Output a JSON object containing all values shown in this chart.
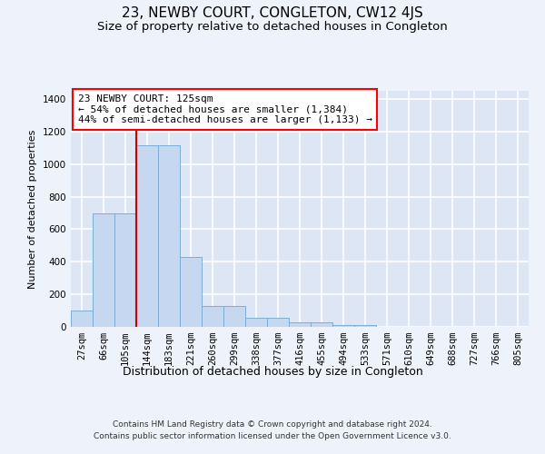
{
  "title": "23, NEWBY COURT, CONGLETON, CW12 4JS",
  "subtitle": "Size of property relative to detached houses in Congleton",
  "xlabel": "Distribution of detached houses by size in Congleton",
  "ylabel": "Number of detached properties",
  "categories": [
    "27sqm",
    "66sqm",
    "105sqm",
    "144sqm",
    "183sqm",
    "221sqm",
    "260sqm",
    "299sqm",
    "338sqm",
    "377sqm",
    "416sqm",
    "455sqm",
    "494sqm",
    "533sqm",
    "571sqm",
    "610sqm",
    "649sqm",
    "688sqm",
    "727sqm",
    "766sqm",
    "805sqm"
  ],
  "values": [
    100,
    695,
    695,
    1115,
    1115,
    430,
    130,
    130,
    55,
    55,
    28,
    28,
    10,
    10,
    2,
    2,
    0,
    0,
    0,
    0,
    0
  ],
  "bar_color": "#c5d8f0",
  "bar_edge_color": "#7badd4",
  "vline_color": "#cc0000",
  "vline_x_idx": 2.5,
  "annotation_text": "23 NEWBY COURT: 125sqm\n← 54% of detached houses are smaller (1,384)\n44% of semi-detached houses are larger (1,133) →",
  "ylim": [
    0,
    1450
  ],
  "yticks": [
    0,
    200,
    400,
    600,
    800,
    1000,
    1200,
    1400
  ],
  "footer_line1": "Contains HM Land Registry data © Crown copyright and database right 2024.",
  "footer_line2": "Contains public sector information licensed under the Open Government Licence v3.0.",
  "bg_color": "#eef2fa",
  "plot_bg_color": "#dde6f5",
  "grid_color": "white",
  "title_fontsize": 11,
  "subtitle_fontsize": 9.5,
  "ylabel_fontsize": 8,
  "xlabel_fontsize": 9,
  "tick_fontsize": 7.5,
  "annotation_fontsize": 8,
  "footer_fontsize": 6.5
}
